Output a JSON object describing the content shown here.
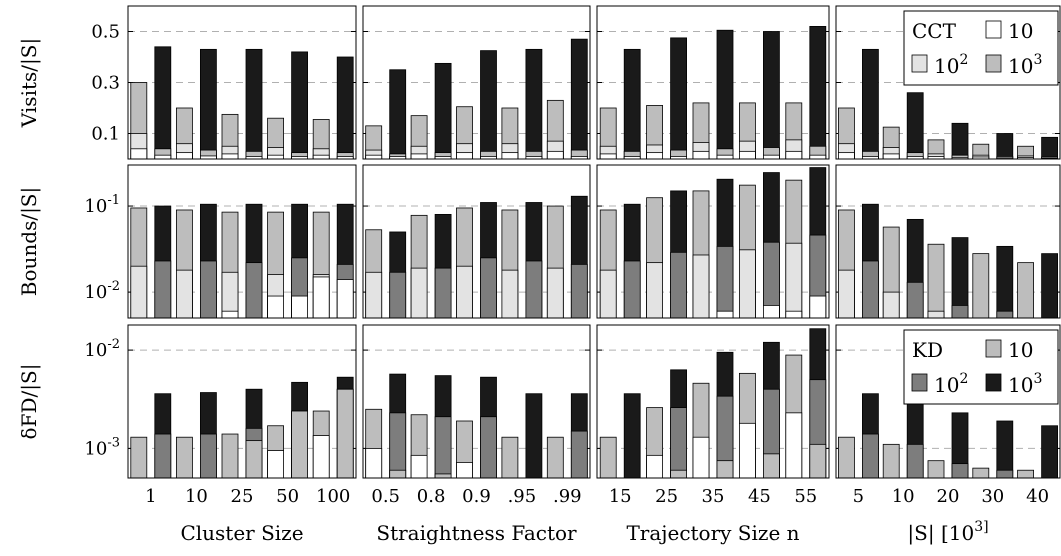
{
  "colors": {
    "light": "#e3e3e3",
    "mid": "#bdbdbd",
    "dark": "#7d7d7d",
    "black": "#1a1a1a",
    "white": "#ffffff",
    "grid": "#b0b0b0"
  },
  "chart_data": {
    "type": "bar",
    "x_groups": [
      {
        "name": "Cluster Size",
        "categories": [
          "1",
          "10",
          "25",
          "50",
          "100"
        ]
      },
      {
        "name": "Straightness Factor",
        "categories": [
          "0.5",
          "0.8",
          "0.9",
          ".95",
          ".99"
        ]
      },
      {
        "name": "Trajectory Size n",
        "categories": [
          "15",
          "25",
          "35",
          "45",
          "55"
        ]
      },
      {
        "name": "|S|  [10^3]",
        "categories": [
          "5",
          "10",
          "20",
          "30",
          "40"
        ]
      }
    ],
    "rows": [
      {
        "ylabel": "Visits/|S|",
        "scale": "linear",
        "ylim": [
          0,
          0.6
        ],
        "yticks": [
          {
            "v": 0.1,
            "label": "0.1"
          },
          {
            "v": 0.3,
            "label": "0.3"
          },
          {
            "v": 0.5,
            "label": "0.5"
          }
        ],
        "legend": {
          "title": "CCT",
          "entries": [
            "10",
            "10^2",
            "10^3"
          ],
          "colors": [
            "white",
            "light",
            "mid"
          ]
        },
        "layers": {
          "left": [
            {
              "name": "10",
              "color": "white"
            },
            {
              "name": "10^2",
              "color": "light"
            },
            {
              "name": "10^3",
              "color": "mid"
            }
          ],
          "right": [
            {
              "name": "10",
              "color": "white"
            },
            {
              "name": "10^2",
              "color": "mid"
            },
            {
              "name": "10^3",
              "color": "black"
            }
          ]
        },
        "groups": [
          {
            "left": [
              [
                0.04,
                0.1,
                0.3
              ],
              [
                0.025,
                0.06,
                0.2
              ],
              [
                0.02,
                0.05,
                0.175
              ],
              [
                0.015,
                0.045,
                0.16
              ],
              [
                0.015,
                0.04,
                0.155
              ]
            ],
            "right": [
              [
                0.015,
                0.04,
                0.44
              ],
              [
                0.012,
                0.035,
                0.43
              ],
              [
                0.01,
                0.03,
                0.43
              ],
              [
                0.01,
                0.025,
                0.42
              ],
              [
                0.01,
                0.025,
                0.4
              ]
            ]
          },
          {
            "left": [
              [
                0.015,
                0.035,
                0.13
              ],
              [
                0.02,
                0.05,
                0.17
              ],
              [
                0.025,
                0.06,
                0.205
              ],
              [
                0.025,
                0.06,
                0.2
              ],
              [
                0.03,
                0.07,
                0.23
              ]
            ],
            "right": [
              [
                0.01,
                0.02,
                0.35
              ],
              [
                0.01,
                0.025,
                0.375
              ],
              [
                0.01,
                0.03,
                0.425
              ],
              [
                0.01,
                0.03,
                0.43
              ],
              [
                0.01,
                0.035,
                0.47
              ]
            ]
          },
          {
            "left": [
              [
                0.02,
                0.05,
                0.2
              ],
              [
                0.025,
                0.055,
                0.21
              ],
              [
                0.03,
                0.065,
                0.22
              ],
              [
                0.03,
                0.07,
                0.22
              ],
              [
                0.03,
                0.075,
                0.22
              ]
            ],
            "right": [
              [
                0.01,
                0.03,
                0.43
              ],
              [
                0.01,
                0.035,
                0.475
              ],
              [
                0.015,
                0.04,
                0.505
              ],
              [
                0.015,
                0.045,
                0.5
              ],
              [
                0.015,
                0.05,
                0.52
              ]
            ]
          },
          {
            "left": [
              [
                0.025,
                0.06,
                0.2
              ],
              [
                0.02,
                0.045,
                0.125
              ],
              [
                0.01,
                0.02,
                0.075
              ],
              [
                0.008,
                0.015,
                0.058
              ],
              [
                0.006,
                0.012,
                0.05
              ]
            ],
            "right": [
              [
                0.01,
                0.03,
                0.43
              ],
              [
                0.01,
                0.025,
                0.26
              ],
              [
                0.005,
                0.015,
                0.14
              ],
              [
                0.004,
                0.01,
                0.1
              ],
              [
                0.003,
                0.008,
                0.085
              ]
            ]
          }
        ]
      },
      {
        "ylabel": "Bounds/|S|",
        "scale": "log",
        "ylim": [
          0.005,
          0.3
        ],
        "yticks": [
          {
            "v": 0.01,
            "label": "10^-2"
          },
          {
            "v": 0.1,
            "label": "10^-1"
          }
        ],
        "layers": {
          "left": [
            {
              "name": "10",
              "color": "white"
            },
            {
              "name": "10^2",
              "color": "light"
            },
            {
              "name": "10^3",
              "color": "mid"
            }
          ],
          "right": [
            {
              "name": "10",
              "color": "white"
            },
            {
              "name": "10^2",
              "color": "dark"
            },
            {
              "name": "10^3",
              "color": "black"
            }
          ]
        },
        "groups": [
          {
            "left": [
              [
                0.005,
                0.02,
                0.095
              ],
              [
                0.005,
                0.018,
                0.09
              ],
              [
                0.006,
                0.017,
                0.085
              ],
              [
                0.009,
                0.016,
                0.085
              ],
              [
                0.015,
                0.016,
                0.085
              ]
            ],
            "right": [
              [
                0.005,
                0.023,
                0.1
              ],
              [
                0.005,
                0.023,
                0.105
              ],
              [
                0.005,
                0.022,
                0.105
              ],
              [
                0.009,
                0.025,
                0.105
              ],
              [
                0.014,
                0.021,
                0.105
              ]
            ]
          },
          {
            "left": [
              [
                0.005,
                0.017,
                0.053
              ],
              [
                0.005,
                0.019,
                0.078
              ],
              [
                0.005,
                0.02,
                0.095
              ],
              [
                0.005,
                0.018,
                0.09
              ],
              [
                0.005,
                0.019,
                0.1
              ]
            ],
            "right": [
              [
                0.005,
                0.017,
                0.05
              ],
              [
                0.005,
                0.019,
                0.08
              ],
              [
                0.005,
                0.025,
                0.11
              ],
              [
                0.005,
                0.023,
                0.11
              ],
              [
                0.005,
                0.021,
                0.13
              ]
            ]
          },
          {
            "left": [
              [
                0.005,
                0.018,
                0.09
              ],
              [
                0.005,
                0.022,
                0.125
              ],
              [
                0.005,
                0.027,
                0.15
              ],
              [
                0.005,
                0.031,
                0.175
              ],
              [
                0.006,
                0.037,
                0.2
              ]
            ],
            "right": [
              [
                0.005,
                0.023,
                0.105
              ],
              [
                0.005,
                0.029,
                0.15
              ],
              [
                0.006,
                0.034,
                0.205
              ],
              [
                0.007,
                0.038,
                0.245
              ],
              [
                0.009,
                0.046,
                0.28
              ]
            ]
          },
          {
            "left": [
              [
                0.005,
                0.018,
                0.09
              ],
              [
                0.005,
                0.01,
                0.057
              ],
              [
                0.005,
                0.006,
                0.036
              ],
              [
                0.005,
                0.005,
                0.028
              ],
              [
                0.005,
                0.005,
                0.022
              ]
            ],
            "right": [
              [
                0.005,
                0.023,
                0.105
              ],
              [
                0.005,
                0.013,
                0.07
              ],
              [
                0.005,
                0.007,
                0.043
              ],
              [
                0.005,
                0.006,
                0.034
              ],
              [
                0.005,
                0.005,
                0.028
              ]
            ]
          }
        ]
      },
      {
        "ylabel": "δFD/|S|",
        "scale": "log",
        "ylim": [
          0.0005,
          0.018
        ],
        "yticks": [
          {
            "v": 0.001,
            "label": "10^-3"
          },
          {
            "v": 0.01,
            "label": "10^-2"
          }
        ],
        "legend": {
          "title": "KD",
          "entries": [
            "10",
            "10^2",
            "10^3"
          ],
          "colors": [
            "mid",
            "dark",
            "black"
          ]
        },
        "layers": {
          "left": [
            {
              "name": "10",
              "color": "white"
            },
            {
              "name": "10^2",
              "color": "light"
            },
            {
              "name": "10^3",
              "color": "mid"
            }
          ],
          "right": [
            {
              "name": "10",
              "color": "mid"
            },
            {
              "name": "10^2",
              "color": "dark"
            },
            {
              "name": "10^3",
              "color": "black"
            }
          ]
        },
        "groups": [
          {
            "left": [
              [
                0.0005,
                0.0005,
                0.0013
              ],
              [
                0.0005,
                0.0005,
                0.0013
              ],
              [
                0.0005,
                0.0005,
                0.0014
              ],
              [
                0.00095,
                0.0005,
                0.0017
              ],
              [
                0.00135,
                0.0005,
                0.0024
              ]
            ],
            "right": [
              [
                0.0005,
                0.0014,
                0.0036
              ],
              [
                0.0005,
                0.0014,
                0.0037
              ],
              [
                0.0012,
                0.0016,
                0.004
              ],
              [
                0.0024,
                0.0024,
                0.0047
              ],
              [
                0.004,
                0.004,
                0.0053
              ]
            ]
          },
          {
            "left": [
              [
                0.001,
                0.0005,
                0.0025
              ],
              [
                0.00085,
                0.0005,
                0.0022
              ],
              [
                0.00072,
                0.0005,
                0.0019
              ],
              [
                0.0005,
                0.0005,
                0.0013
              ],
              [
                0.0005,
                0.0005,
                0.0013
              ]
            ],
            "right": [
              [
                0.0006,
                0.0023,
                0.0057
              ],
              [
                0.00055,
                0.0021,
                0.0055
              ],
              [
                0.0005,
                0.0021,
                0.0053
              ],
              [
                0.0005,
                0.0005,
                0.0036
              ],
              [
                0.0005,
                0.0015,
                0.0036
              ]
            ]
          },
          {
            "left": [
              [
                0.0005,
                0.0005,
                0.0013
              ],
              [
                0.00085,
                0.0005,
                0.0026
              ],
              [
                0.0013,
                0.0005,
                0.0046
              ],
              [
                0.0018,
                0.0005,
                0.0058
              ],
              [
                0.0023,
                0.0005,
                0.0089
              ]
            ],
            "right": [
              [
                0.0005,
                0.0005,
                0.0036
              ],
              [
                0.0006,
                0.0026,
                0.0063
              ],
              [
                0.00075,
                0.0034,
                0.0095
              ],
              [
                0.00088,
                0.004,
                0.012
              ],
              [
                0.0011,
                0.005,
                0.0165
              ]
            ]
          },
          {
            "left": [
              [
                0.0005,
                0.0005,
                0.0013
              ],
              [
                0.0005,
                0.0005,
                0.0011
              ],
              [
                0.0005,
                0.0005,
                0.00075
              ],
              [
                0.0005,
                0.0005,
                0.00063
              ],
              [
                0.0005,
                0.0005,
                0.0006
              ]
            ],
            "right": [
              [
                0.0005,
                0.0014,
                0.0036
              ],
              [
                0.0005,
                0.0011,
                0.003
              ],
              [
                0.0005,
                0.0007,
                0.0023
              ],
              [
                0.0005,
                0.0006,
                0.0019
              ],
              [
                0.0005,
                0.0005,
                0.0017
              ]
            ]
          }
        ]
      }
    ]
  }
}
